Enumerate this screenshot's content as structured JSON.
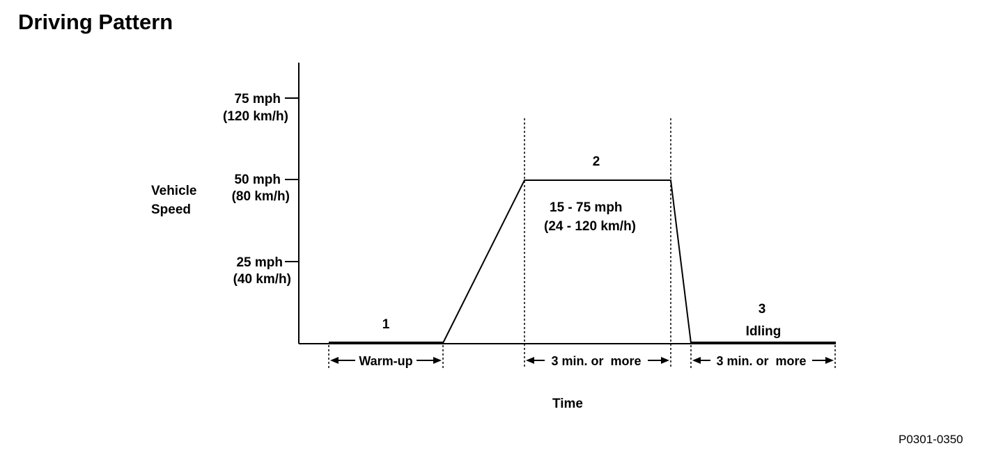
{
  "title": "Driving Pattern",
  "figure_id": "P0301-0350",
  "y_axis_label": [
    "Vehicle",
    "Speed"
  ],
  "x_axis_label": "Time",
  "speed_ticks": [
    {
      "mph": "75 mph",
      "kmh": "(120 km/h)"
    },
    {
      "mph": "50 mph",
      "kmh": "(80 km/h)"
    },
    {
      "mph": "25 mph",
      "kmh": "(40 km/h)"
    }
  ],
  "phases": [
    {
      "number": "1",
      "name": "",
      "duration": "Warm-up"
    },
    {
      "number": "2",
      "speed_range": [
        "15 - 75 mph",
        "(24 - 120 km/h)"
      ],
      "duration": "3 min. or  more"
    },
    {
      "number": "3",
      "name": "Idling",
      "duration": "3 min. or  more"
    }
  ],
  "speed_profile_mph": [
    0,
    0,
    50,
    50,
    0,
    0
  ],
  "colors": {
    "line": "#000000",
    "background": "#ffffff"
  }
}
